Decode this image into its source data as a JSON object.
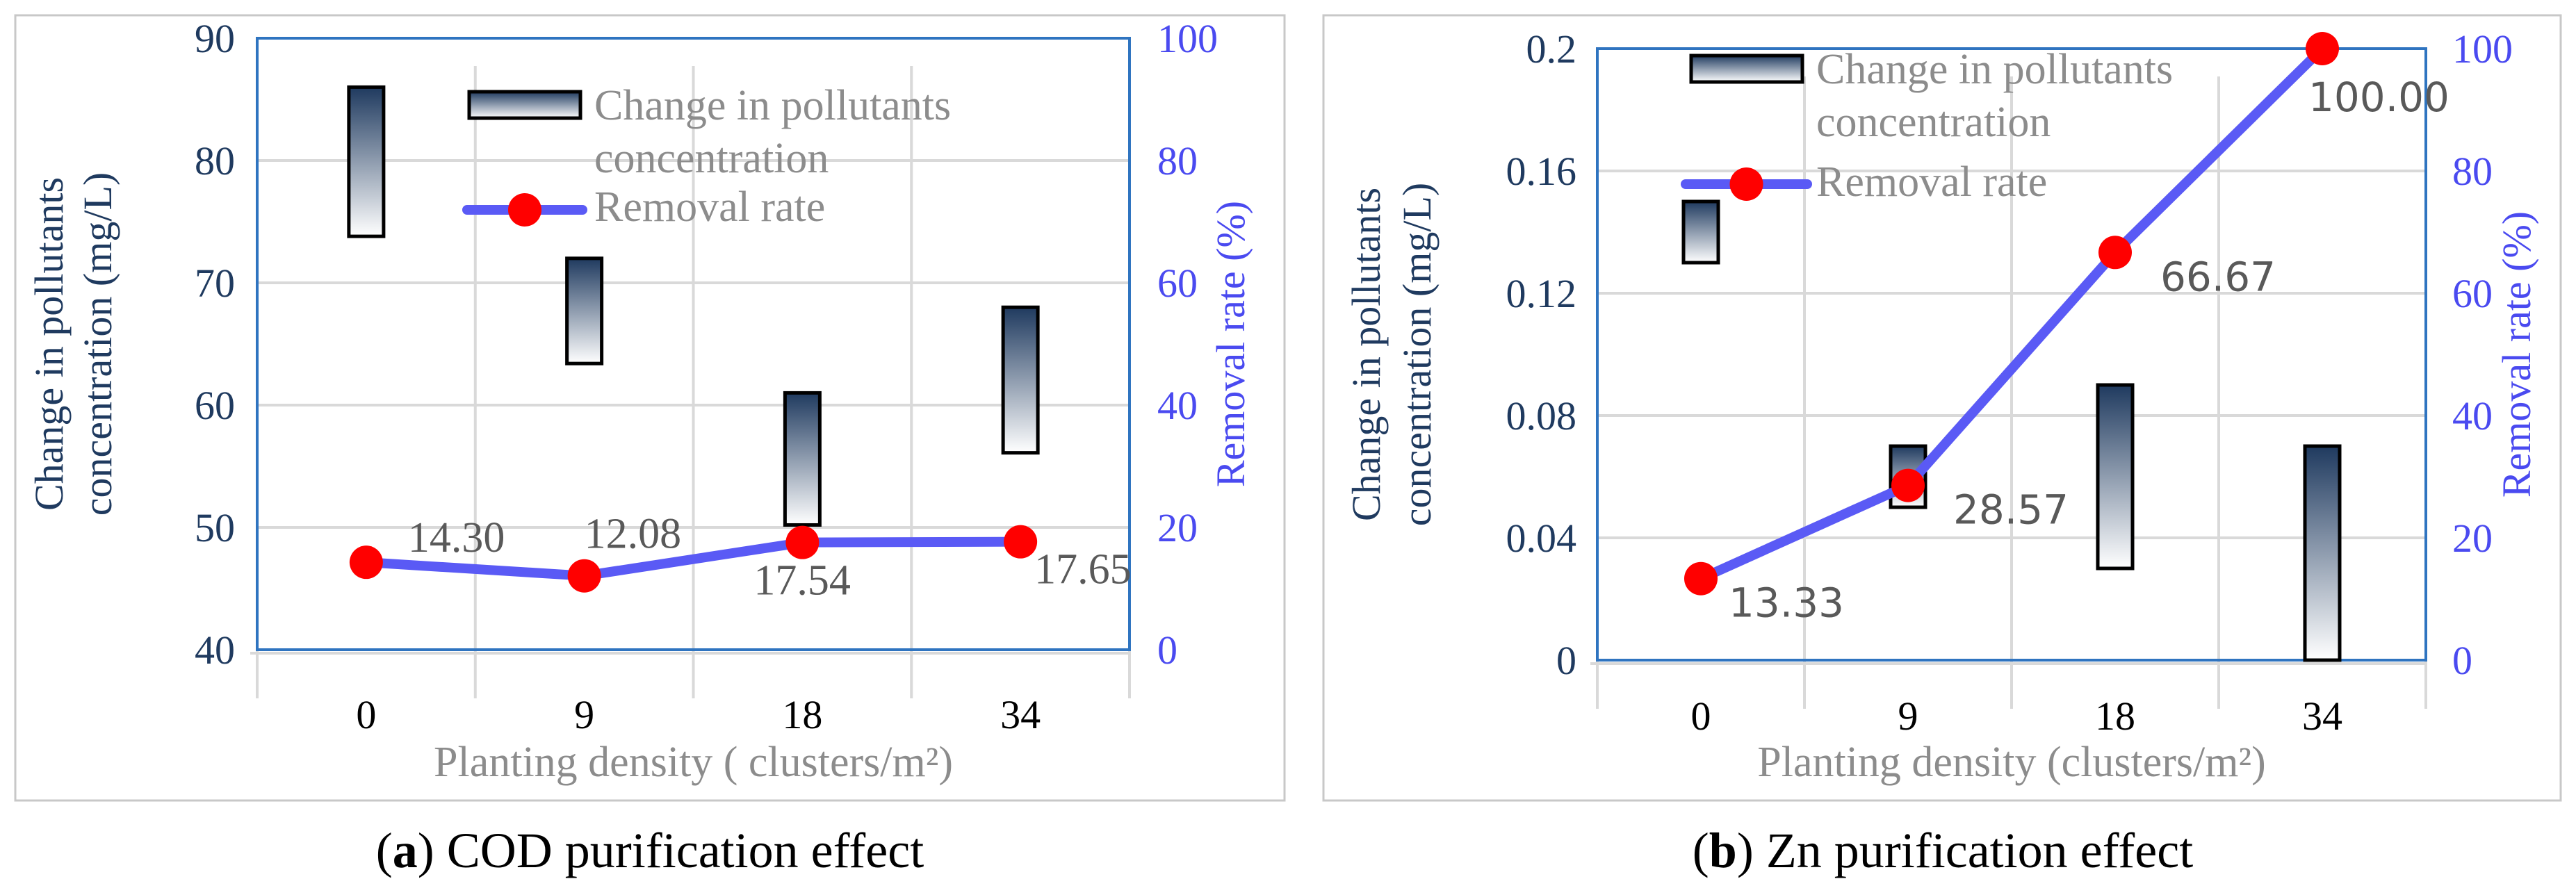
{
  "panels": [
    {
      "caption_letter": "a",
      "caption_text": " COD purification effect",
      "chart_data": {
        "type": "bar+line",
        "categories": [
          "0",
          "9",
          "18",
          "34"
        ],
        "xlabel": "Planting density ( clusters/m²)",
        "ylabel_lines": [
          "Change in pollutants",
          "concentration (mg/L)"
        ],
        "y2label": "Removal rate (%)",
        "ylim": [
          40,
          90
        ],
        "yticks": [
          "40",
          "50",
          "60",
          "70",
          "80",
          "90"
        ],
        "y2lim": [
          0,
          100
        ],
        "y2ticks": [
          "0",
          "20",
          "40",
          "60",
          "80",
          "100"
        ],
        "bars": {
          "name": "Change in pollutants concentration",
          "low": [
            73.8,
            63.4,
            50.2,
            56.1
          ],
          "high": [
            86.0,
            72.0,
            61.0,
            68.0
          ]
        },
        "line": {
          "name": "Removal rate",
          "values": [
            14.3,
            12.08,
            17.54,
            17.65
          ],
          "labels": [
            "14.30",
            "12.08",
            "17.54",
            "17.65"
          ]
        },
        "legend": {
          "bar_lines": [
            "Change in pollutants",
            "concentration"
          ],
          "line_label": "Removal rate"
        },
        "colors": {
          "axis_left": "#1f3a5f",
          "axis_right": "#4a4af0",
          "line": "#5a5af5",
          "marker": "#ff0000",
          "bar_dark": "#1f3a5f"
        }
      }
    },
    {
      "caption_letter": "b",
      "caption_text": " Zn purification effect",
      "chart_data": {
        "type": "bar+line",
        "categories": [
          "0",
          "9",
          "18",
          "34"
        ],
        "xlabel": "Planting density (clusters/m²)",
        "ylabel_lines": [
          "Change in pollutants",
          "concentration (mg/L)"
        ],
        "y2label": "Removal rate (%)",
        "ylim": [
          0,
          0.2
        ],
        "yticks": [
          "0",
          "0.04",
          "0.08",
          "0.12",
          "0.16",
          "0.2"
        ],
        "y2lim": [
          0,
          100
        ],
        "y2ticks": [
          "0",
          "20",
          "40",
          "60",
          "80",
          "100"
        ],
        "bars": {
          "name": "Change in pollutants concentration",
          "low": [
            0.13,
            0.05,
            0.03,
            0.0
          ],
          "high": [
            0.15,
            0.07,
            0.09,
            0.07
          ]
        },
        "line": {
          "name": "Removal rate",
          "values": [
            13.33,
            28.57,
            66.67,
            100.0
          ],
          "labels": [
            "13.33",
            "28.57",
            "66.67",
            "100.00"
          ]
        },
        "legend": {
          "bar_lines": [
            "Change in pollutants",
            "concentration"
          ],
          "line_label": "Removal rate"
        },
        "colors": {
          "axis_left": "#1f3a5f",
          "axis_right": "#4a4af0",
          "line": "#5a5af5",
          "marker": "#ff0000",
          "bar_dark": "#1f3a5f"
        }
      }
    }
  ]
}
